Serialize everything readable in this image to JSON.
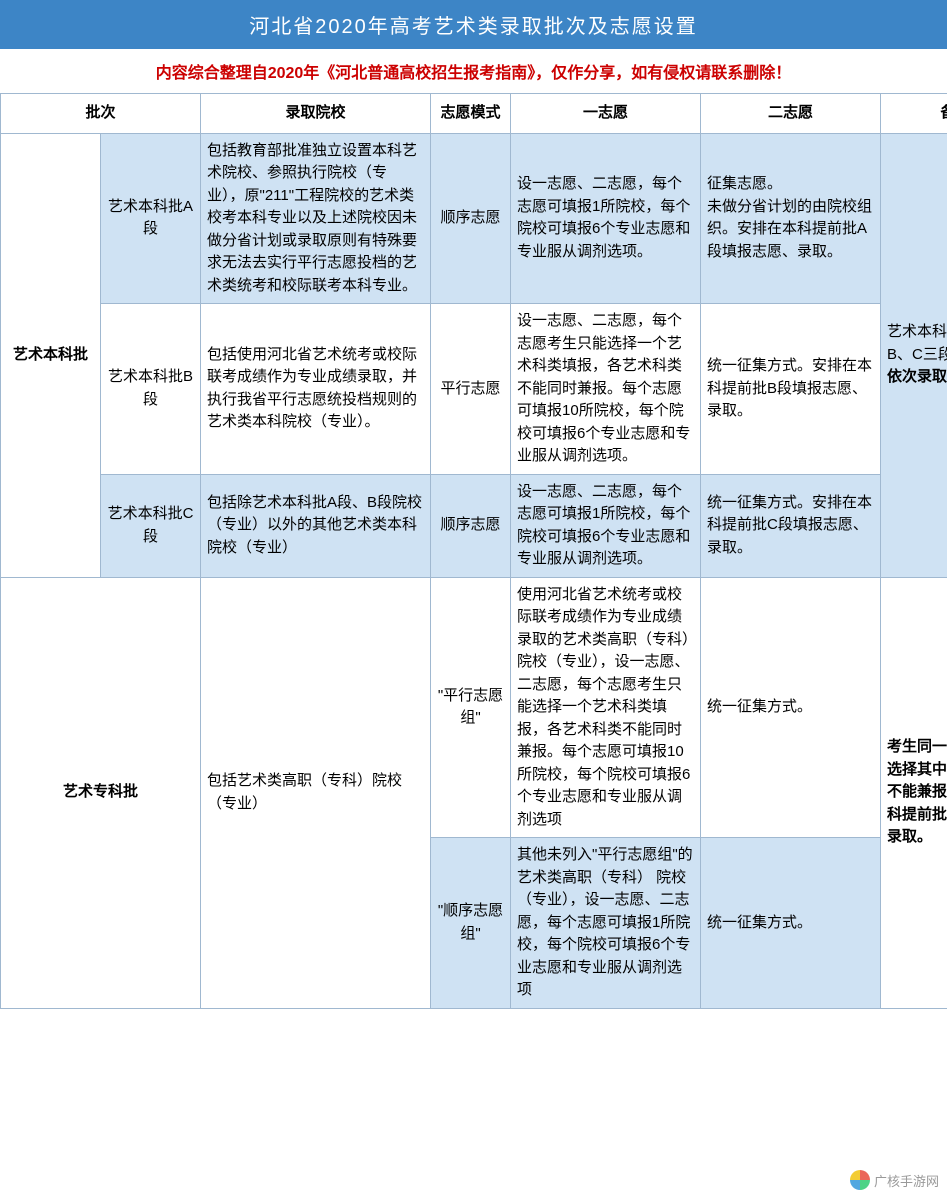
{
  "title": "河北省2020年高考艺术类录取批次及志愿设置",
  "disclaimer": "内容综合整理自2020年《河北普通高校招生报考指南》，仅作分享，如有侵权请联系删除！",
  "headers": {
    "batch": "批次",
    "school": "录取院校",
    "mode": "志愿模式",
    "pref1": "一志愿",
    "pref2": "二志愿",
    "remark": "备注"
  },
  "rows": {
    "r1": {
      "batch_group": "艺术本科批",
      "sub": "艺术本科批A段",
      "school": "包括教育部批准独立设置本科艺术院校、参照执行院校（专业），原\"211\"工程院校的艺术类校考本科专业以及上述院校因未做分省计划或录取原则有特殊要求无法去实行平行志愿投档的艺术类统考和校际联考本科专业。",
      "mode": "顺序志愿",
      "pref1": "设一志愿、二志愿，每个志愿可填报1所院校，每个院校可填报6个专业志愿和专业服从调剂选项。",
      "pref2": "征集志愿。\n未做分省计划的由院校组织。安排在本科提前批A段填报志愿、录取。"
    },
    "r2": {
      "sub": "艺术本科批B段",
      "school": "包括使用河北省艺术统考或校际联考成绩作为专业成绩录取，并执行我省平行志愿统投档规则的艺术类本科院校（专业）。",
      "mode": "平行志愿",
      "pref1": "设一志愿、二志愿，每个志愿考生只能选择一个艺术科类填报，各艺术科类不能同时兼报。每个志愿可填报10所院校，每个院校可填报6个专业志愿和专业服从调剂选项。",
      "pref2": "统一征集方式。安排在本科提前批B段填报志愿、录取。",
      "remark_prefix": "艺术本科批分为A、B、C三段，",
      "remark_bold": "按顺序依次录取。"
    },
    "r3": {
      "sub": "艺术本科批C段",
      "school": "包括除艺术本科批A段、B段院校（专业）以外的其他艺术类本科院校（专业）",
      "mode": "顺序志愿",
      "pref1": "设一志愿、二志愿，每个志愿可填报1所院校，每个院校可填报6个专业志愿和专业服从调剂选项。",
      "pref2": "统一征集方式。安排在本科提前批C段填报志愿、录取。"
    },
    "r4": {
      "batch_group": "艺术专科批",
      "school": "包括艺术类高职（专科）院校（专业）",
      "mode": "\"平行志愿组\"",
      "pref1": "使用河北省艺术统考或校际联考成绩作为专业成绩录取的艺术类高职（专科）院校（专业），设一志愿、二志愿，每个志愿考生只能选择一个艺术科类填报，各艺术科类不能同时兼报。每个志愿可填报10所院校，每个院校可填报6个专业志愿和专业服从调剂选项",
      "pref2": "统一征集方式。",
      "remark": "考生同一个志愿只能选择其中一组填报，不能兼报。安排在专科提前批填报志愿、录取。"
    },
    "r5": {
      "mode": "\"顺序志愿组\"",
      "pref1": "其他未列入\"平行志愿组\"的艺术类高职（专科） 院校（专业），设一志愿、二志愿，每个志愿可填报1所院校，每个院校可填报6个专业志愿和专业服从调剂选项",
      "pref2": "统一征集方式。"
    }
  },
  "watermark": "广核手游网",
  "colors": {
    "title_bg": "#3d85c6",
    "blue_cell": "#cfe2f3",
    "border": "#a0b8d0",
    "disclaimer": "#cc0000"
  }
}
